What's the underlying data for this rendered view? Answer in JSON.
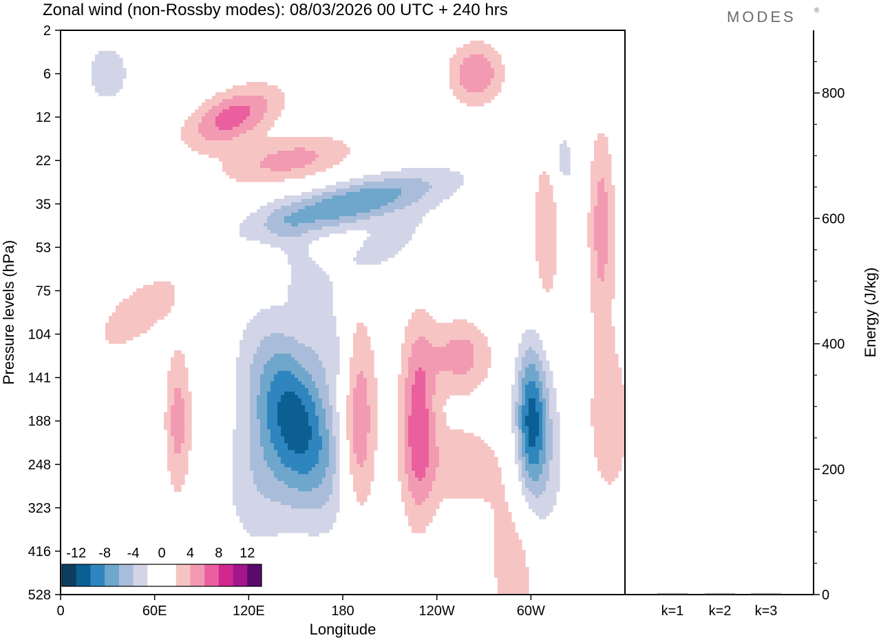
{
  "title": "Zonal wind (non-Rossby modes):  08/03/2026  00 UTC  + 240 hrs",
  "brand": "MODES",
  "brand_mark": "®",
  "colors": {
    "neg": [
      "#0b3d5e",
      "#0b5f92",
      "#2f86be",
      "#6fa6cc",
      "#a9bdda",
      "#d2d5e7"
    ],
    "zero": "#ffffff",
    "pos": [
      "#f7c4c4",
      "#f39ab3",
      "#ea5f9e",
      "#d02790",
      "#a3158a",
      "#5a0a6b"
    ]
  },
  "chart_data": [
    {
      "type": "heatmap",
      "title": "Zonal wind (non-Rossby modes)",
      "xlabel": "Longitude",
      "ylabel": "Pressure levels (hPa)",
      "x_ticks": [
        "0",
        "60E",
        "120E",
        "180",
        "120W",
        "60W"
      ],
      "y_ticks": [
        "2",
        "6",
        "12",
        "22",
        "35",
        "53",
        "75",
        "104",
        "141",
        "188",
        "248",
        "323",
        "416",
        "528"
      ],
      "colorbar": {
        "tick_labels": [
          "-12",
          "-8",
          "-4",
          "0",
          "4",
          "8",
          "12"
        ],
        "levels": [
          -12,
          -10,
          -8,
          -6,
          -4,
          -2,
          2,
          4,
          6,
          8,
          10,
          12
        ]
      },
      "features": [
        {
          "lon": 150,
          "level": 9,
          "half_lon": 18,
          "half_levels": 1.4,
          "peak": -11,
          "tilt": 6
        },
        {
          "lon": 185,
          "level": 4,
          "half_lon": 30,
          "half_levels": 0.5,
          "peak": -8,
          "tilt": -60
        },
        {
          "lon": 300,
          "level": 9,
          "half_lon": 7,
          "half_levels": 1.2,
          "peak": -10,
          "tilt": 0
        },
        {
          "lon": 190,
          "level": 9,
          "half_lon": 8,
          "half_levels": 1.5,
          "peak": 7,
          "tilt": 0
        },
        {
          "lon": 228,
          "level": 9,
          "half_lon": 8,
          "half_levels": 1.6,
          "peak": 7,
          "tilt": 0
        },
        {
          "lon": 75,
          "level": 9,
          "half_lon": 6,
          "half_levels": 1.2,
          "peak": 5,
          "tilt": 0
        },
        {
          "lon": 255,
          "level": 7.5,
          "half_lon": 14,
          "half_levels": 0.6,
          "peak": 5,
          "tilt": 0
        },
        {
          "lon": 110,
          "level": 2,
          "half_lon": 18,
          "half_levels": 0.5,
          "peak": 7,
          "tilt": -20
        },
        {
          "lon": 145,
          "level": 3,
          "half_lon": 26,
          "half_levels": 0.4,
          "peak": 5,
          "tilt": -30
        },
        {
          "lon": 265,
          "level": 1,
          "half_lon": 12,
          "half_levels": 0.5,
          "peak": 6,
          "tilt": 0
        },
        {
          "lon": 290,
          "level": 12.3,
          "half_lon": 14,
          "half_levels": 1.5,
          "peak": 3,
          "tilt": 0
        },
        {
          "lon": 345,
          "level": 4.5,
          "half_lon": 6,
          "half_levels": 1.6,
          "peak": 5,
          "tilt": 0
        },
        {
          "lon": 310,
          "level": 4.5,
          "half_lon": 6,
          "half_levels": 1.4,
          "peak": 4,
          "tilt": 0
        },
        {
          "lon": 50,
          "level": 6.5,
          "half_lon": 14,
          "half_levels": 0.6,
          "peak": 4,
          "tilt": -20
        },
        {
          "lon": 125,
          "level": 10.5,
          "half_lon": 16,
          "half_levels": 1.2,
          "peak": -3,
          "tilt": 0
        },
        {
          "lon": 310,
          "level": 10,
          "half_lon": 10,
          "half_levels": 1.5,
          "peak": -3,
          "tilt": 0
        },
        {
          "lon": 205,
          "level": 5,
          "half_lon": 16,
          "half_levels": 0.6,
          "peak": -3,
          "tilt": -30
        },
        {
          "lon": 30,
          "level": 1,
          "half_lon": 12,
          "half_levels": 0.6,
          "peak": -3,
          "tilt": 0
        },
        {
          "lon": 165,
          "level": 6.5,
          "half_lon": 10,
          "half_levels": 1.5,
          "peak": -3,
          "tilt": 10
        },
        {
          "lon": 350,
          "level": 9,
          "half_lon": 12,
          "half_levels": 1.6,
          "peak": 3,
          "tilt": 0
        },
        {
          "lon": 320,
          "level": 3,
          "half_lon": 6,
          "half_levels": 0.6,
          "peak": -3,
          "tilt": 0
        },
        {
          "lon": 255,
          "level": 10,
          "half_lon": 20,
          "half_levels": 0.8,
          "peak": 3,
          "tilt": 0
        }
      ]
    },
    {
      "type": "bar",
      "ylabel": "Energy (J/kg)",
      "categories": [
        "k=1",
        "k=2",
        "k=3"
      ],
      "values": [
        1,
        1,
        1
      ],
      "ylim": [
        0,
        900
      ],
      "y_ticks": [
        "0",
        "200",
        "400",
        "600",
        "800"
      ]
    }
  ]
}
